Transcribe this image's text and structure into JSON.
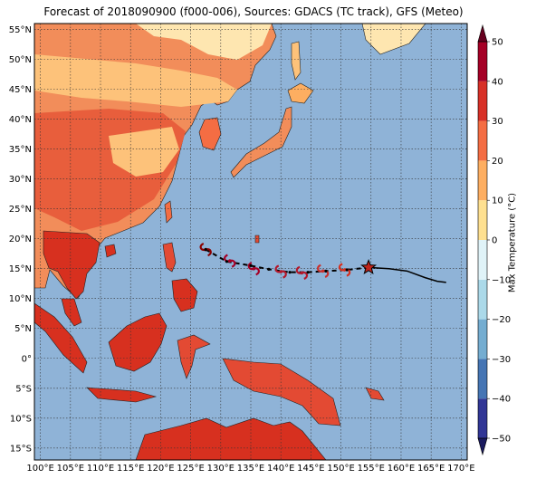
{
  "title": "Forecast of 2018090900 (f000-006), Sources: GDACS (TC track), GFS (Meteo)",
  "map": {
    "lon_range": [
      99,
      171
    ],
    "lat_range": [
      -17,
      56
    ],
    "lon_ticks": [
      100,
      105,
      110,
      115,
      120,
      125,
      130,
      135,
      140,
      145,
      150,
      155,
      160,
      165,
      170
    ],
    "lon_tick_labels": [
      "100°E",
      "105°E",
      "110°E",
      "115°E",
      "120°E",
      "125°E",
      "130°E",
      "135°E",
      "140°E",
      "145°E",
      "150°E",
      "155°E",
      "160°E",
      "165°E",
      "170°E"
    ],
    "lat_ticks": [
      55,
      50,
      45,
      40,
      35,
      30,
      25,
      20,
      15,
      10,
      5,
      0,
      -5,
      -10,
      -15
    ],
    "lat_tick_labels": [
      "55°N",
      "50°N",
      "45°N",
      "40°N",
      "35°N",
      "30°N",
      "25°N",
      "20°N",
      "15°N",
      "10°N",
      "5°N",
      "0°",
      "5°S",
      "10°S",
      "15°S"
    ],
    "grid": true,
    "ocean_color": "#8fb3d7"
  },
  "colorbar": {
    "label": "Max Temperature (°C)",
    "ticks": [
      50,
      40,
      30,
      20,
      10,
      0,
      -10,
      -20,
      -30,
      -40,
      -50
    ],
    "tick_labels": [
      "50",
      "40",
      "30",
      "20",
      "10",
      "0",
      "−10",
      "−20",
      "−30",
      "−40",
      "−50"
    ],
    "colors": [
      "#313695",
      "#4575b4",
      "#74add1",
      "#abd9e9",
      "#e0f3f8",
      "#fee090",
      "#fdae61",
      "#f46d43",
      "#d73027",
      "#a50026"
    ]
  },
  "track": {
    "forecast_points": [
      [
        127.5,
        18.2
      ],
      [
        131,
        16.2
      ],
      [
        135,
        15.5
      ],
      [
        138,
        14.9
      ],
      [
        141.5,
        14.4
      ],
      [
        144.5,
        14.4
      ],
      [
        147.5,
        14.6
      ],
      [
        151,
        14.8
      ],
      [
        154.6,
        15.2
      ]
    ],
    "current_position": [
      154.6,
      15.2
    ],
    "history": [
      [
        154.6,
        15.2
      ],
      [
        158,
        15.0
      ],
      [
        161,
        14.6
      ],
      [
        164,
        13.5
      ],
      [
        166,
        12.9
      ],
      [
        167.5,
        12.7
      ]
    ],
    "storm_symbols": [
      [
        127.5,
        18.2
      ],
      [
        131.5,
        16.3
      ],
      [
        135.5,
        15.0
      ],
      [
        140,
        14.5
      ],
      [
        143.5,
        14.3
      ],
      [
        147,
        14.6
      ],
      [
        150.6,
        14.8
      ]
    ]
  }
}
